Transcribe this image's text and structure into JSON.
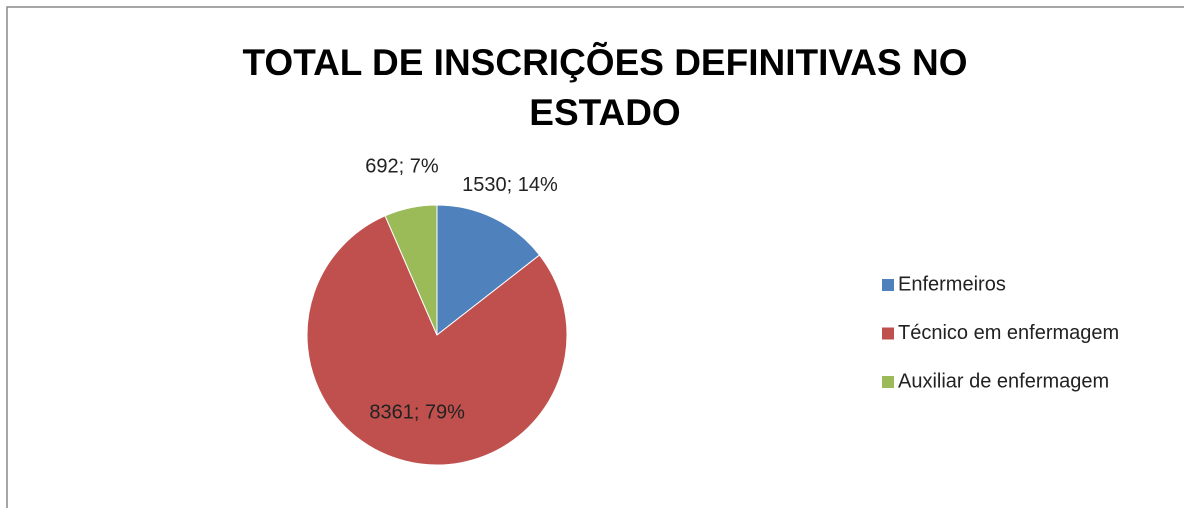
{
  "chart_data": {
    "type": "pie",
    "title": "TOTAL DE INSCRIÇÕES DEFINITIVAS NO ESTADO",
    "categories": [
      "Enfermeiros",
      "Técnico em enfermagem",
      "Auxiliar de enfermagem"
    ],
    "values": [
      1530,
      8361,
      692
    ],
    "value_labels": [
      "1530; 14%",
      "8361; 79%",
      "692; 7%"
    ],
    "colors": [
      "#4f81bd",
      "#c0504d",
      "#9bbb59"
    ],
    "legend": "right"
  }
}
